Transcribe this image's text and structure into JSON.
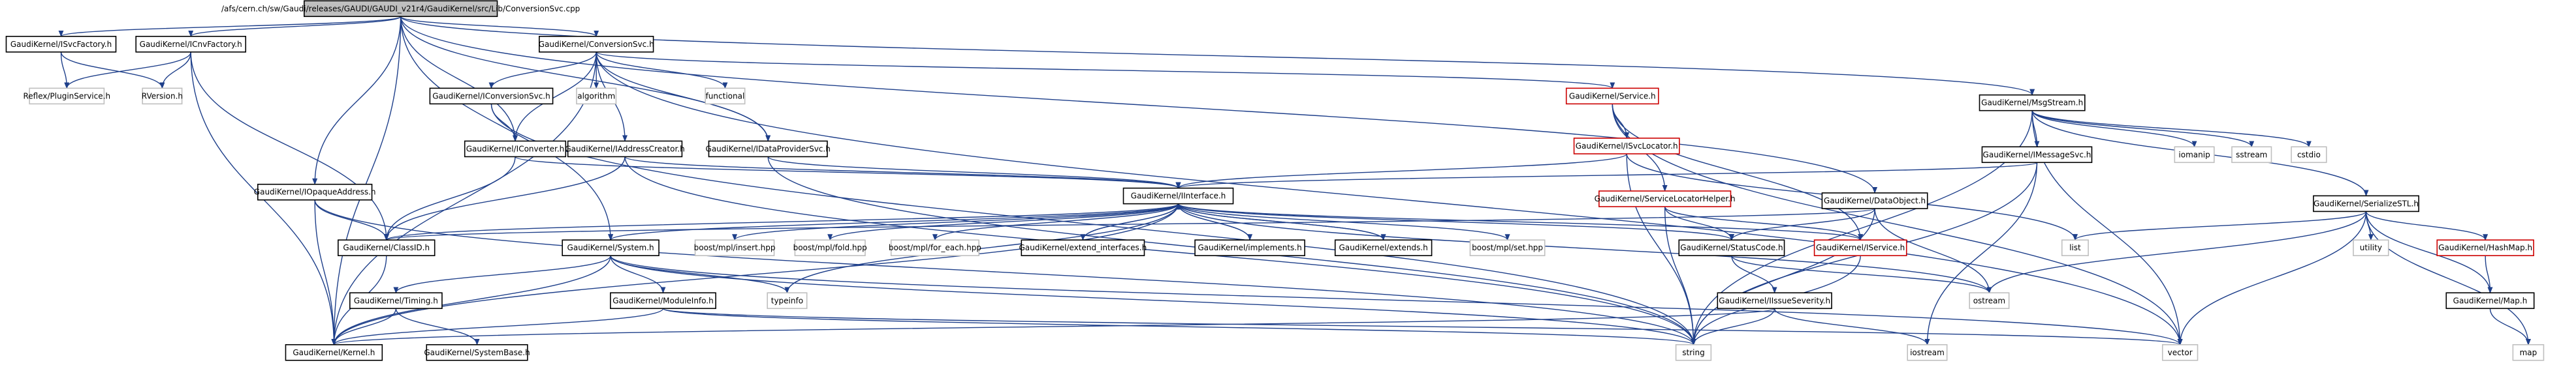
{
  "colors": {
    "root_fill": "#bfbfbf",
    "box_stroke": "#000000",
    "missing_stroke": "#cc0000",
    "edge": "#1e3f8a",
    "text": "#000000"
  },
  "root": "/afs/cern.ch/sw/Gaudi/releases/GAUDI/GAUDI_v21r4/GaudiKernel/src/Lib/ConversionSvc.cpp",
  "nodes": [
    {
      "id": "root",
      "label": "/afs/cern.ch/sw/Gaudi/releases/GAUDI/GAUDI_v21r4/GaudiKernel/src/Lib/ConversionSvc.cpp",
      "kind": "root"
    },
    {
      "id": "isvcfactory",
      "label": "GaudiKernel/ISvcFactory.h",
      "kind": "file"
    },
    {
      "id": "icnvfactory",
      "label": "GaudiKernel/ICnvFactory.h",
      "kind": "file"
    },
    {
      "id": "conversionsvc",
      "label": "GaudiKernel/ConversionSvc.h",
      "kind": "file"
    },
    {
      "id": "msgstream",
      "label": "GaudiKernel/MsgStream.h",
      "kind": "file"
    },
    {
      "id": "reflex",
      "label": "Reflex/PluginService.h",
      "kind": "external"
    },
    {
      "id": "rversion",
      "label": "RVersion.h",
      "kind": "external"
    },
    {
      "id": "iconversionsvc",
      "label": "GaudiKernel/IConversionSvc.h",
      "kind": "file"
    },
    {
      "id": "algorithm",
      "label": "algorithm",
      "kind": "external"
    },
    {
      "id": "functional",
      "label": "functional",
      "kind": "external"
    },
    {
      "id": "service",
      "label": "GaudiKernel/Service.h",
      "kind": "missing"
    },
    {
      "id": "iconverter",
      "label": "GaudiKernel/IConverter.h",
      "kind": "file"
    },
    {
      "id": "iaddresscreator",
      "label": "GaudiKernel/IAddressCreator.h",
      "kind": "file"
    },
    {
      "id": "idataprovidersvc",
      "label": "GaudiKernel/IDataProviderSvc.h",
      "kind": "file"
    },
    {
      "id": "isvclocator",
      "label": "GaudiKernel/ISvcLocator.h",
      "kind": "missing"
    },
    {
      "id": "imessagesvc",
      "label": "GaudiKernel/IMessageSvc.h",
      "kind": "file"
    },
    {
      "id": "iomanip",
      "label": "iomanip",
      "kind": "external"
    },
    {
      "id": "sstream",
      "label": "sstream",
      "kind": "external"
    },
    {
      "id": "cstdio",
      "label": "cstdio",
      "kind": "external"
    },
    {
      "id": "iopaqueaddress",
      "label": "GaudiKernel/IOpaqueAddress.h",
      "kind": "file"
    },
    {
      "id": "iinterface",
      "label": "GaudiKernel/IInterface.h",
      "kind": "file"
    },
    {
      "id": "servicelocatorhelper",
      "label": "GaudiKernel/ServiceLocatorHelper.h",
      "kind": "missing"
    },
    {
      "id": "dataobject",
      "label": "GaudiKernel/DataObject.h",
      "kind": "file"
    },
    {
      "id": "serializestl",
      "label": "GaudiKernel/SerializeSTL.h",
      "kind": "file"
    },
    {
      "id": "classid",
      "label": "GaudiKernel/ClassID.h",
      "kind": "file"
    },
    {
      "id": "isystem",
      "label": "GaudiKernel/System.h",
      "kind": "file"
    },
    {
      "id": "mplinsert",
      "label": "boost/mpl/insert.hpp",
      "kind": "external"
    },
    {
      "id": "mplfold",
      "label": "boost/mpl/fold.hpp",
      "kind": "external"
    },
    {
      "id": "mplforeach",
      "label": "boost/mpl/for_each.hpp",
      "kind": "external"
    },
    {
      "id": "extendinterfaces",
      "label": "GaudiKernel/extend_interfaces.h",
      "kind": "file"
    },
    {
      "id": "implements",
      "label": "GaudiKernel/implements.h",
      "kind": "file"
    },
    {
      "id": "extends",
      "label": "GaudiKernel/extends.h",
      "kind": "file"
    },
    {
      "id": "mplset",
      "label": "boost/mpl/set.hpp",
      "kind": "external"
    },
    {
      "id": "statuscode",
      "label": "GaudiKernel/StatusCode.h",
      "kind": "file"
    },
    {
      "id": "iservice",
      "label": "GaudiKernel/IService.h",
      "kind": "missing"
    },
    {
      "id": "list",
      "label": "list",
      "kind": "external"
    },
    {
      "id": "utility",
      "label": "utility",
      "kind": "external"
    },
    {
      "id": "hashmap",
      "label": "GaudiKernel/HashMap.h",
      "kind": "missing"
    },
    {
      "id": "timing",
      "label": "GaudiKernel/Timing.h",
      "kind": "file"
    },
    {
      "id": "moduleinfo",
      "label": "GaudiKernel/ModuleInfo.h",
      "kind": "file"
    },
    {
      "id": "typeinfo",
      "label": "typeinfo",
      "kind": "external"
    },
    {
      "id": "ostream",
      "label": "ostream",
      "kind": "external"
    },
    {
      "id": "iissueseverity",
      "label": "GaudiKernel/IIssueSeverity.h",
      "kind": "file"
    },
    {
      "id": "gmap",
      "label": "GaudiKernel/Map.h",
      "kind": "file"
    },
    {
      "id": "kernel",
      "label": "GaudiKernel/Kernel.h",
      "kind": "file"
    },
    {
      "id": "systembase",
      "label": "GaudiKernel/SystemBase.h",
      "kind": "file"
    },
    {
      "id": "string",
      "label": "string",
      "kind": "external"
    },
    {
      "id": "iostream",
      "label": "iostream",
      "kind": "external"
    },
    {
      "id": "vector",
      "label": "vector",
      "kind": "external"
    },
    {
      "id": "map",
      "label": "map",
      "kind": "external"
    }
  ],
  "edges": [
    [
      "root",
      "isvcfactory"
    ],
    [
      "root",
      "icnvfactory"
    ],
    [
      "root",
      "conversionsvc"
    ],
    [
      "root",
      "msgstream"
    ],
    [
      "root",
      "iconverter"
    ],
    [
      "root",
      "iopaqueaddress"
    ],
    [
      "root",
      "idataprovidersvc"
    ],
    [
      "root",
      "isystem"
    ],
    [
      "root",
      "dataobject"
    ],
    [
      "root",
      "kernel"
    ],
    [
      "isvcfactory",
      "reflex"
    ],
    [
      "isvcfactory",
      "rversion"
    ],
    [
      "icnvfactory",
      "reflex"
    ],
    [
      "icnvfactory",
      "rversion"
    ],
    [
      "icnvfactory",
      "classid"
    ],
    [
      "icnvfactory",
      "kernel"
    ],
    [
      "conversionsvc",
      "iconversionsvc"
    ],
    [
      "conversionsvc",
      "algorithm"
    ],
    [
      "conversionsvc",
      "functional"
    ],
    [
      "conversionsvc",
      "service"
    ],
    [
      "conversionsvc",
      "iaddresscreator"
    ],
    [
      "conversionsvc",
      "idataprovidersvc"
    ],
    [
      "conversionsvc",
      "iconverter"
    ],
    [
      "conversionsvc",
      "kernel"
    ],
    [
      "conversionsvc",
      "vector"
    ],
    [
      "msgstream",
      "imessagesvc"
    ],
    [
      "msgstream",
      "iomanip"
    ],
    [
      "msgstream",
      "sstream"
    ],
    [
      "msgstream",
      "cstdio"
    ],
    [
      "msgstream",
      "serializestl"
    ],
    [
      "msgstream",
      "vector"
    ],
    [
      "msgstream",
      "string"
    ],
    [
      "iconversionsvc",
      "iconverter"
    ],
    [
      "iconversionsvc",
      "string"
    ],
    [
      "service",
      "isvclocator"
    ],
    [
      "service",
      "servicelocatorhelper"
    ],
    [
      "service",
      "iservice"
    ],
    [
      "service",
      "vector"
    ],
    [
      "iconverter",
      "iinterface"
    ],
    [
      "iconverter",
      "classid"
    ],
    [
      "iaddresscreator",
      "iinterface"
    ],
    [
      "iaddresscreator",
      "classid"
    ],
    [
      "iaddresscreator",
      "string"
    ],
    [
      "idataprovidersvc",
      "iinterface"
    ],
    [
      "idataprovidersvc",
      "string"
    ],
    [
      "isvclocator",
      "iinterface"
    ],
    [
      "isvclocator",
      "list"
    ],
    [
      "isvclocator",
      "string"
    ],
    [
      "imessagesvc",
      "iinterface"
    ],
    [
      "imessagesvc",
      "string"
    ],
    [
      "imessagesvc",
      "iostream"
    ],
    [
      "iopaqueaddress",
      "classid"
    ],
    [
      "iopaqueaddress",
      "kernel"
    ],
    [
      "iopaqueaddress",
      "string"
    ],
    [
      "iinterface",
      "classid"
    ],
    [
      "iinterface",
      "isystem"
    ],
    [
      "iinterface",
      "mplinsert"
    ],
    [
      "iinterface",
      "mplfold"
    ],
    [
      "iinterface",
      "mplforeach"
    ],
    [
      "iinterface",
      "extendinterfaces"
    ],
    [
      "iinterface",
      "implements"
    ],
    [
      "iinterface",
      "extends"
    ],
    [
      "iinterface",
      "mplset"
    ],
    [
      "iinterface",
      "statuscode"
    ],
    [
      "iinterface",
      "ostream"
    ],
    [
      "iinterface",
      "typeinfo"
    ],
    [
      "iinterface",
      "kernel"
    ],
    [
      "servicelocatorhelper",
      "statuscode"
    ],
    [
      "servicelocatorhelper",
      "iservice"
    ],
    [
      "servicelocatorhelper",
      "string"
    ],
    [
      "dataobject",
      "classid"
    ],
    [
      "dataobject",
      "statuscode"
    ],
    [
      "dataobject",
      "ostream"
    ],
    [
      "dataobject",
      "string"
    ],
    [
      "serializestl",
      "ostream"
    ],
    [
      "serializestl",
      "vector"
    ],
    [
      "serializestl",
      "list"
    ],
    [
      "serializestl",
      "utility"
    ],
    [
      "serializestl",
      "map"
    ],
    [
      "serializestl",
      "hashmap"
    ],
    [
      "serializestl",
      "gmap"
    ],
    [
      "classid",
      "kernel"
    ],
    [
      "isystem",
      "timing"
    ],
    [
      "isystem",
      "moduleinfo"
    ],
    [
      "isystem",
      "kernel"
    ],
    [
      "isystem",
      "string"
    ],
    [
      "isystem",
      "vector"
    ],
    [
      "isystem",
      "typeinfo"
    ],
    [
      "implements",
      "iinterface"
    ],
    [
      "extends",
      "iinterface"
    ],
    [
      "extendinterfaces",
      "iinterface"
    ],
    [
      "statuscode",
      "iissueseverity"
    ],
    [
      "statuscode",
      "ostream"
    ],
    [
      "iservice",
      "iinterface"
    ],
    [
      "iservice",
      "string"
    ],
    [
      "hashmap",
      "gmap"
    ],
    [
      "gmap",
      "map"
    ],
    [
      "timing",
      "kernel"
    ],
    [
      "timing",
      "systembase"
    ],
    [
      "moduleinfo",
      "kernel"
    ],
    [
      "moduleinfo",
      "string"
    ],
    [
      "moduleinfo",
      "vector"
    ],
    [
      "iissueseverity",
      "kernel"
    ],
    [
      "iissueseverity",
      "string"
    ],
    [
      "iissueseverity",
      "iostream"
    ]
  ]
}
